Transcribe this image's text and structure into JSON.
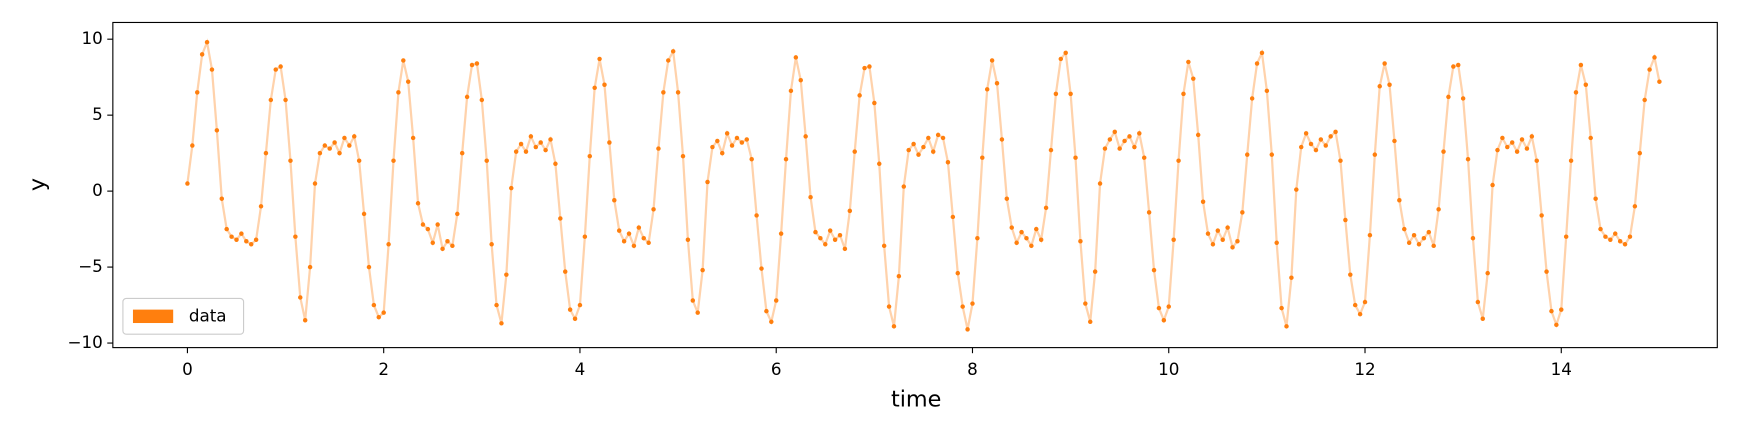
{
  "chart_data": {
    "type": "line",
    "xlabel": "time",
    "ylabel": "y",
    "xlim": [
      -0.76,
      15.59
    ],
    "ylim": [
      -10.3,
      11.1
    ],
    "xticks": [
      0,
      2,
      4,
      6,
      8,
      10,
      12,
      14
    ],
    "yticks": [
      {
        "value": -10,
        "label": "−10"
      },
      {
        "value": -5,
        "label": "−5"
      },
      0,
      5,
      10
    ],
    "legend": "lower left",
    "markers": true,
    "x": [
      0,
      0.05,
      0.1,
      0.15,
      0.2,
      0.25,
      0.3,
      0.35,
      0.4,
      0.45,
      0.5,
      0.55,
      0.6,
      0.65,
      0.7,
      0.75,
      0.8,
      0.85,
      0.9,
      0.95,
      1,
      1.05,
      1.1,
      1.15,
      1.2,
      1.25,
      1.3,
      1.35,
      1.4,
      1.45,
      1.5,
      1.55,
      1.6,
      1.65,
      1.7,
      1.75,
      1.8,
      1.85,
      1.9,
      1.95,
      2,
      2.05,
      2.1,
      2.15,
      2.2,
      2.25,
      2.3,
      2.35,
      2.4,
      2.45,
      2.5,
      2.55,
      2.6,
      2.65,
      2.7,
      2.75,
      2.8,
      2.85,
      2.9,
      2.95,
      3,
      3.05,
      3.1,
      3.15,
      3.2,
      3.25,
      3.3,
      3.35,
      3.4,
      3.45,
      3.5,
      3.55,
      3.6,
      3.65,
      3.7,
      3.75,
      3.8,
      3.85,
      3.9,
      3.95,
      4,
      4.05,
      4.1,
      4.15,
      4.2,
      4.25,
      4.3,
      4.35,
      4.4,
      4.45,
      4.5,
      4.55,
      4.6,
      4.65,
      4.7,
      4.75,
      4.8,
      4.85,
      4.9,
      4.95,
      5,
      5.05,
      5.1,
      5.15,
      5.2,
      5.25,
      5.3,
      5.35,
      5.4,
      5.45,
      5.5,
      5.55,
      5.6,
      5.65,
      5.7,
      5.75,
      5.8,
      5.85,
      5.9,
      5.95,
      6,
      6.05,
      6.1,
      6.15,
      6.2,
      6.25,
      6.3,
      6.35,
      6.4,
      6.45,
      6.5,
      6.55,
      6.6,
      6.65,
      6.7,
      6.75,
      6.8,
      6.85,
      6.9,
      6.95,
      7,
      7.05,
      7.1,
      7.15,
      7.2,
      7.25,
      7.3,
      7.35,
      7.4,
      7.45,
      7.5,
      7.55,
      7.6,
      7.65,
      7.7,
      7.75,
      7.8,
      7.85,
      7.9,
      7.95,
      8,
      8.05,
      8.1,
      8.15,
      8.2,
      8.25,
      8.3,
      8.35,
      8.4,
      8.45,
      8.5,
      8.55,
      8.6,
      8.65,
      8.7,
      8.75,
      8.8,
      8.85,
      8.9,
      8.95,
      9,
      9.05,
      9.1,
      9.15,
      9.2,
      9.25,
      9.3,
      9.35,
      9.4,
      9.45,
      9.5,
      9.55,
      9.6,
      9.65,
      9.7,
      9.75,
      9.8,
      9.85,
      9.9,
      9.95,
      10,
      10.05,
      10.1,
      10.15,
      10.2,
      10.25,
      10.3,
      10.35,
      10.4,
      10.45,
      10.5,
      10.55,
      10.6,
      10.65,
      10.7,
      10.75,
      10.8,
      10.85,
      10.9,
      10.95,
      11,
      11.05,
      11.1,
      11.15,
      11.2,
      11.25,
      11.3,
      11.35,
      11.4,
      11.45,
      11.5,
      11.55,
      11.6,
      11.65,
      11.7,
      11.75,
      11.8,
      11.85,
      11.9,
      11.95,
      12,
      12.05,
      12.1,
      12.15,
      12.2,
      12.25,
      12.3,
      12.35,
      12.4,
      12.45,
      12.5,
      12.55,
      12.6,
      12.65,
      12.7,
      12.75,
      12.8,
      12.85,
      12.9,
      12.95,
      13,
      13.05,
      13.1,
      13.15,
      13.2,
      13.25,
      13.3,
      13.35,
      13.4,
      13.45,
      13.5,
      13.55,
      13.6,
      13.65,
      13.7,
      13.75,
      13.8,
      13.85,
      13.9,
      13.95,
      14,
      14.05,
      14.1,
      14.15,
      14.2,
      14.25,
      14.3,
      14.35,
      14.4,
      14.45,
      14.5,
      14.55,
      14.6,
      14.65,
      14.7,
      14.75,
      14.8,
      14.85,
      14.9,
      14.95,
      15
    ],
    "series": [
      {
        "name": "data",
        "color": "#ff7f0e",
        "values": [
          0.5,
          3,
          6.5,
          9,
          9.8,
          8,
          4,
          -0.5,
          -2.5,
          -3,
          -3.2,
          -2.8,
          -3.3,
          -3.5,
          -3.2,
          -1,
          2.5,
          6,
          8,
          8.2,
          6,
          2,
          -3,
          -7,
          -8.5,
          -5,
          0.5,
          2.5,
          3,
          2.8,
          3.2,
          2.5,
          3.5,
          3,
          3.6,
          2,
          -1.5,
          -5,
          -7.5,
          -8.3,
          -8,
          -3.5,
          2,
          6.5,
          8.6,
          7.2,
          3.5,
          -0.8,
          -2.2,
          -2.5,
          -3.4,
          -2.2,
          -3.8,
          -3.3,
          -3.6,
          -1.5,
          2.5,
          6.2,
          8.3,
          8.4,
          6,
          2,
          -3.5,
          -7.5,
          -8.7,
          -5.5,
          0.2,
          2.6,
          3.1,
          2.6,
          3.6,
          2.9,
          3.2,
          2.7,
          3.4,
          1.8,
          -1.8,
          -5.3,
          -7.8,
          -8.4,
          -7.5,
          -3,
          2.3,
          6.8,
          8.7,
          7,
          3.2,
          -0.6,
          -2.6,
          -3.3,
          -2.8,
          -3.6,
          -2.4,
          -3.1,
          -3.4,
          -1.2,
          2.8,
          6.5,
          8.6,
          9.2,
          6.5,
          2.3,
          -3.2,
          -7.2,
          -8,
          -5.2,
          0.6,
          2.9,
          3.3,
          2.5,
          3.8,
          3,
          3.5,
          3.2,
          3.4,
          2.1,
          -1.6,
          -5.1,
          -7.9,
          -8.6,
          -7.2,
          -2.8,
          2.1,
          6.6,
          8.8,
          7.3,
          3.6,
          -0.4,
          -2.7,
          -3.1,
          -3.5,
          -2.6,
          -3.2,
          -2.9,
          -3.8,
          -1.3,
          2.6,
          6.3,
          8.1,
          8.2,
          5.8,
          1.8,
          -3.6,
          -7.6,
          -8.9,
          -5.6,
          0.3,
          2.7,
          3.1,
          2.4,
          2.9,
          3.5,
          2.6,
          3.7,
          3.5,
          1.9,
          -1.7,
          -5.4,
          -7.6,
          -9.1,
          -7.4,
          -3.1,
          2.2,
          6.7,
          8.6,
          7.1,
          3.4,
          -0.5,
          -2.4,
          -3.4,
          -2.7,
          -3.1,
          -3.6,
          -2.5,
          -3.2,
          -1.1,
          2.7,
          6.4,
          8.7,
          9.1,
          6.4,
          2.2,
          -3.3,
          -7.4,
          -8.6,
          -5.3,
          0.5,
          2.8,
          3.4,
          3.9,
          2.8,
          3.3,
          3.6,
          2.9,
          3.8,
          2.2,
          -1.4,
          -5.2,
          -7.7,
          -8.5,
          -7.6,
          -3.2,
          2,
          6.4,
          8.5,
          7.4,
          3.7,
          -0.7,
          -2.8,
          -3.5,
          -2.6,
          -3.2,
          -2.4,
          -3.7,
          -3.3,
          -1.4,
          2.4,
          6.1,
          8.4,
          9.1,
          6.6,
          2.4,
          -3.4,
          -7.7,
          -8.9,
          -5.7,
          0.1,
          2.9,
          3.8,
          3.1,
          2.7,
          3.4,
          3,
          3.6,
          3.9,
          2,
          -1.9,
          -5.5,
          -7.5,
          -8.1,
          -7.3,
          -2.9,
          2.4,
          6.9,
          8.4,
          7,
          3.3,
          -0.6,
          -2.5,
          -3.4,
          -2.9,
          -3.5,
          -3.1,
          -2.7,
          -3.6,
          -1.2,
          2.6,
          6.2,
          8.2,
          8.3,
          6.1,
          2.1,
          -3.1,
          -7.3,
          -8.4,
          -5.4,
          0.4,
          2.7,
          3.5,
          2.9,
          3.2,
          2.6,
          3.4,
          2.8,
          3.6,
          2,
          -1.6,
          -5.3,
          -7.9,
          -8.8,
          -7.8,
          -3,
          2,
          6.5,
          8.3,
          7,
          3.5,
          -0.5,
          -2.5,
          -3,
          -3.2,
          -2.8,
          -3.3,
          -3.5,
          -3,
          -1,
          2.5,
          6,
          8,
          8.8,
          7.2
        ]
      }
    ]
  }
}
